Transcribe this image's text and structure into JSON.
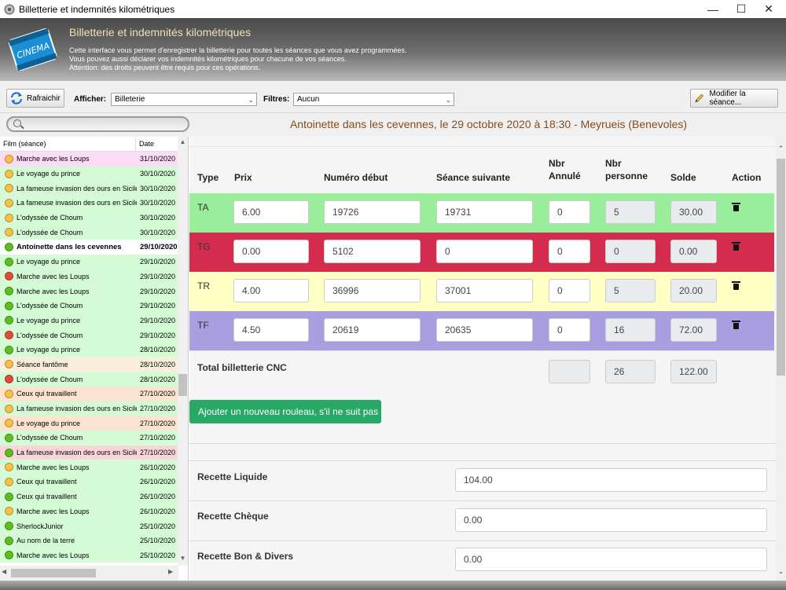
{
  "window": {
    "title": "Billetterie et indemnités kilométriques",
    "minimize": "—",
    "maximize": "☐",
    "close": "✕"
  },
  "banner": {
    "logo_text": "CINEMA",
    "title": "Billetterie et indemnités kilométriques",
    "lines": [
      "Cette interface vous permet d'enregistrer la billetterie pour toutes les séances que vous avez programmées.",
      "Vous pouvez aussi déclarer vos indemnités kilométriques pour chacune de vos séances.",
      "Attention: des droits peuvent être requis pour ces opérations."
    ]
  },
  "toolbar": {
    "refresh_label": "Rafraichir",
    "afficher_label": "Afficher:",
    "afficher_value": "Billeterie",
    "filtres_label": "Filtres:",
    "filtres_value": "Aucun",
    "modify_label": "Modifier la séance..."
  },
  "session_title": "Antoinette dans les cevennes, le 29 octobre 2020 à 18:30 - Meyrueis (Benevoles)",
  "list": {
    "col_film": "Film (séance)",
    "col_date": "Date",
    "rows": [
      {
        "film": "Marche avec les Loups",
        "date": "31/10/2020",
        "status": "orange",
        "bg": "#fbdcf4"
      },
      {
        "film": "Le voyage du prince",
        "date": "30/10/2020",
        "status": "orange",
        "bg": "#d4fbd6"
      },
      {
        "film": "La fameuse invasion des ours en Sicile",
        "date": "30/10/2020",
        "status": "orange",
        "bg": "#d4fbd6"
      },
      {
        "film": "La fameuse invasion des ours en Sicile",
        "date": "30/10/2020",
        "status": "orange",
        "bg": "#d4fbd6"
      },
      {
        "film": "L'odyssée de Choum",
        "date": "30/10/2020",
        "status": "orange",
        "bg": "#d4fbd6"
      },
      {
        "film": "L'odyssée de Choum",
        "date": "30/10/2020",
        "status": "orange",
        "bg": "#d4fbd6"
      },
      {
        "film": "Antoinette dans les cevennes",
        "date": "29/10/2020",
        "status": "green",
        "bg": "#ffffff",
        "selected": true
      },
      {
        "film": "Le voyage du prince",
        "date": "29/10/2020",
        "status": "green",
        "bg": "#d4fbd6"
      },
      {
        "film": "Marche avec les Loups",
        "date": "29/10/2020",
        "status": "red",
        "bg": "#d4fbd6"
      },
      {
        "film": "Marche avec les Loups",
        "date": "29/10/2020",
        "status": "green",
        "bg": "#d4fbd6"
      },
      {
        "film": "L'odyssée de Choum",
        "date": "29/10/2020",
        "status": "green",
        "bg": "#d4fbd6"
      },
      {
        "film": "Le voyage du prince",
        "date": "29/10/2020",
        "status": "green",
        "bg": "#d4fbd6"
      },
      {
        "film": "L'odyssée de Choum",
        "date": "29/10/2020",
        "status": "red",
        "bg": "#d4fbd6"
      },
      {
        "film": "Le voyage du prince",
        "date": "28/10/2020",
        "status": "green",
        "bg": "#d4fbd6"
      },
      {
        "film": "Séance fantôme",
        "date": "28/10/2020",
        "status": "orange",
        "bg": "#fbeedd"
      },
      {
        "film": "L'odyssée de Choum",
        "date": "28/10/2020",
        "status": "red",
        "bg": "#d4fbd6"
      },
      {
        "film": "Ceux qui travaillent",
        "date": "27/10/2020",
        "status": "orange",
        "bg": "#fbe4cf"
      },
      {
        "film": "La fameuse invasion des ours en Sicile",
        "date": "27/10/2020",
        "status": "orange",
        "bg": "#d4fbd6"
      },
      {
        "film": "Le voyage du prince",
        "date": "27/10/2020",
        "status": "orange",
        "bg": "#fbe4cf"
      },
      {
        "film": "L'odyssée de Choum",
        "date": "27/10/2020",
        "status": "green",
        "bg": "#d4fbd6"
      },
      {
        "film": "La fameuse invasion des ours en Sicile",
        "date": "27/10/2020",
        "status": "green",
        "bg": "#fbd4dc"
      },
      {
        "film": "Marche avec les Loups",
        "date": "26/10/2020",
        "status": "orange",
        "bg": "#d4fbd6"
      },
      {
        "film": "Ceux qui travaillent",
        "date": "26/10/2020",
        "status": "orange",
        "bg": "#d4fbd6"
      },
      {
        "film": "Ceux qui travaillent",
        "date": "26/10/2020",
        "status": "green",
        "bg": "#d4fbd6"
      },
      {
        "film": "Marche avec les Loups",
        "date": "26/10/2020",
        "status": "orange",
        "bg": "#d4fbd6"
      },
      {
        "film": "SherlockJunior",
        "date": "25/10/2020",
        "status": "green",
        "bg": "#d4fbd6"
      },
      {
        "film": "Au nom de la terre",
        "date": "25/10/2020",
        "status": "green",
        "bg": "#d4fbd6"
      },
      {
        "film": "Marche avec les Loups",
        "date": "25/10/2020",
        "status": "green",
        "bg": "#d4fbd6"
      }
    ]
  },
  "status_colors": {
    "orange": "#f7c146",
    "green": "#5cbf20",
    "red": "#e04b3a"
  },
  "ticket_table": {
    "headers": {
      "type": "Type",
      "prix": "Prix",
      "numero_debut": "Numéro début",
      "seance_suivante": "Séance suivante",
      "nbr_annule_1": "Nbr",
      "nbr_annule_2": "Annulé",
      "nbr_personne_1": "Nbr",
      "nbr_personne_2": "personne",
      "solde": "Solde",
      "action": "Action"
    },
    "rows": [
      {
        "type": "TA",
        "prix": "6.00",
        "numero_debut": "19726",
        "seance_suivante": "19731",
        "annule": "0",
        "personne": "5",
        "solde": "30.00",
        "bg": "#9aed9a",
        "trash": true
      },
      {
        "type": "TG",
        "prix": "0.00",
        "numero_debut": "5102",
        "seance_suivante": "0",
        "annule": "0",
        "personne": "0",
        "solde": "0.00",
        "bg": "#d42c4f",
        "trash": true
      },
      {
        "type": "TR",
        "prix": "4.00",
        "numero_debut": "36996",
        "seance_suivante": "37001",
        "annule": "0",
        "personne": "5",
        "solde": "20.00",
        "bg": "#ffffc4",
        "trash": true
      },
      {
        "type": "TF",
        "prix": "4.50",
        "numero_debut": "20619",
        "seance_suivante": "20635",
        "annule": "0",
        "personne": "16",
        "solde": "72.00",
        "bg": "#a99fe0",
        "trash": true
      }
    ],
    "total_label": "Total billetterie CNC",
    "total_annule": "",
    "total_personne": "26",
    "total_solde": "122.00"
  },
  "add_button_label": "Ajouter un nouveau rouleau, s'il ne suit pas",
  "recettes": [
    {
      "label": "Recette Liquide",
      "value": "104.00"
    },
    {
      "label": "Recette Chèque",
      "value": "0.00"
    },
    {
      "label": "Recette Bon & Divers",
      "value": "0.00"
    }
  ]
}
